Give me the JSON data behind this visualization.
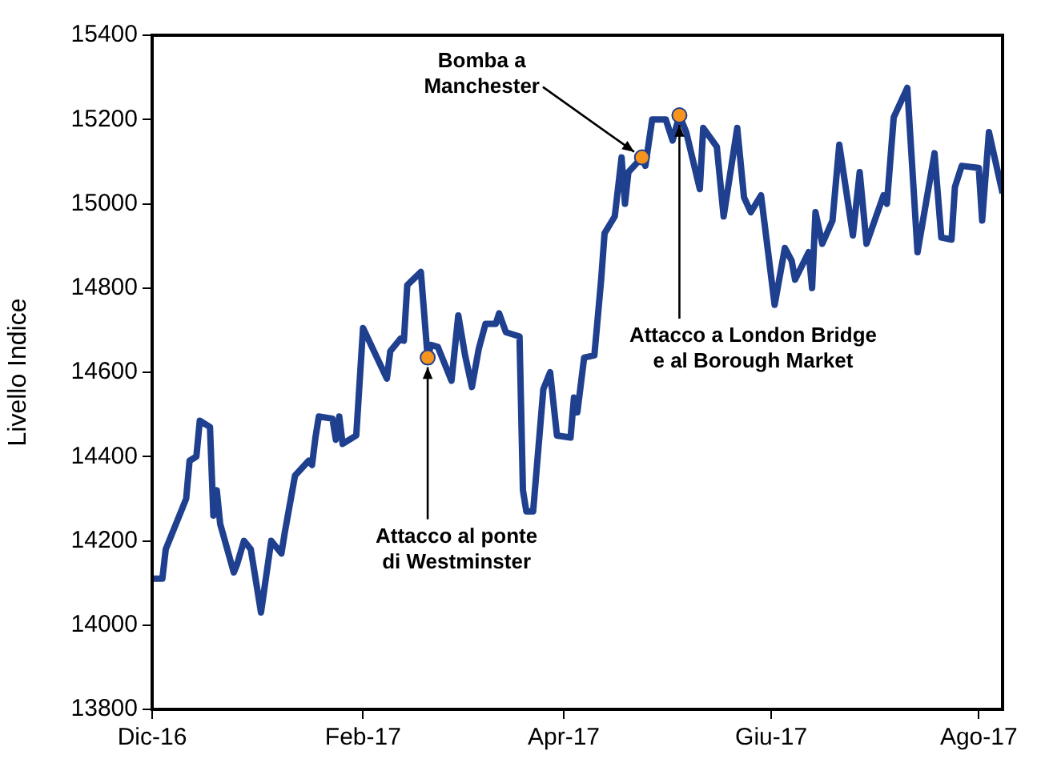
{
  "chart_data": {
    "type": "line",
    "ylabel": "Livello Indice",
    "x": [
      "2016-12-01",
      "2016-12-04",
      "2016-12-05",
      "2016-12-07",
      "2016-12-11",
      "2016-12-12",
      "2016-12-14",
      "2016-12-15",
      "2016-12-18",
      "2016-12-19",
      "2016-12-20",
      "2016-12-21",
      "2016-12-25",
      "2016-12-26",
      "2016-12-28",
      "2016-12-30",
      "2017-01-02",
      "2017-01-05",
      "2017-01-08",
      "2017-01-09",
      "2017-01-12",
      "2017-01-16",
      "2017-01-17",
      "2017-01-18",
      "2017-01-19",
      "2017-01-23",
      "2017-01-24",
      "2017-01-25",
      "2017-01-26",
      "2017-01-30",
      "2017-02-01",
      "2017-02-08",
      "2017-02-09",
      "2017-02-12",
      "2017-02-13",
      "2017-02-14",
      "2017-02-18",
      "2017-02-20",
      "2017-02-21",
      "2017-02-23",
      "2017-02-27",
      "2017-03-01",
      "2017-03-03",
      "2017-03-05",
      "2017-03-07",
      "2017-03-09",
      "2017-03-12",
      "2017-03-13",
      "2017-03-15",
      "2017-03-19",
      "2017-03-20",
      "2017-03-21",
      "2017-03-23",
      "2017-03-26",
      "2017-03-28",
      "2017-03-30",
      "2017-04-03",
      "2017-04-04",
      "2017-04-05",
      "2017-04-07",
      "2017-04-10",
      "2017-04-12",
      "2017-04-13",
      "2017-04-16",
      "2017-04-18",
      "2017-04-19",
      "2017-04-20",
      "2017-04-24",
      "2017-04-25",
      "2017-04-27",
      "2017-05-01",
      "2017-05-03",
      "2017-05-05",
      "2017-05-07",
      "2017-05-11",
      "2017-05-12",
      "2017-05-16",
      "2017-05-18",
      "2017-05-22",
      "2017-05-24",
      "2017-05-26",
      "2017-05-29",
      "2017-06-02",
      "2017-06-05",
      "2017-06-07",
      "2017-06-08",
      "2017-06-12",
      "2017-06-13",
      "2017-06-14",
      "2017-06-16",
      "2017-06-19",
      "2017-06-21",
      "2017-06-25",
      "2017-06-27",
      "2017-06-29",
      "2017-07-04",
      "2017-07-05",
      "2017-07-07",
      "2017-07-11",
      "2017-07-14",
      "2017-07-19",
      "2017-07-21",
      "2017-07-24",
      "2017-07-25",
      "2017-07-27",
      "2017-08-01",
      "2017-08-02",
      "2017-08-04",
      "2017-08-08"
    ],
    "series": [
      {
        "color": "#1f3f8f",
        "marker": "none",
        "values": [
          14110,
          14110,
          14180,
          14220,
          14300,
          14390,
          14400,
          14485,
          14470,
          14260,
          14320,
          14240,
          14125,
          14145,
          14200,
          14180,
          14030,
          14200,
          14170,
          14220,
          14355,
          14390,
          14380,
          14445,
          14495,
          14490,
          14440,
          14495,
          14430,
          14450,
          14705,
          14585,
          14650,
          14680,
          14675,
          14807,
          14838,
          14635,
          14665,
          14660,
          14580,
          14735,
          14640,
          14565,
          14655,
          14715,
          14715,
          14740,
          14695,
          14685,
          14320,
          14270,
          14270,
          14560,
          14600,
          14450,
          14445,
          14540,
          14505,
          14635,
          14640,
          14820,
          14930,
          14970,
          15110,
          15000,
          15075,
          15110,
          15090,
          15200,
          15200,
          15150,
          15210,
          15170,
          15035,
          15180,
          15135,
          14970,
          15180,
          15015,
          14980,
          15020,
          14760,
          14895,
          14865,
          14820,
          14885,
          14800,
          14980,
          14905,
          14960,
          15140,
          14925,
          15075,
          14905,
          15020,
          15000,
          15205,
          15275,
          14885,
          15120,
          14920,
          14915,
          15040,
          15090,
          15085,
          14960,
          15170,
          15025
        ]
      },
      {
        "type": "scatter",
        "marker": "circle",
        "color": "#f7941d",
        "x": [
          "2017-02-20",
          "2017-04-24",
          "2017-05-05"
        ],
        "values": [
          14635,
          15110,
          15210
        ]
      }
    ],
    "annotations": [
      {
        "text": "Attacco al ponte\ndi Westminster",
        "x": "2017-02-20",
        "y": 14635
      },
      {
        "text": "Bomba a\nManchester",
        "x": "2017-04-24",
        "y": 15110
      },
      {
        "text": "Attacco a London Bridge\ne al Borough Market",
        "x": "2017-05-05",
        "y": 15210
      }
    ],
    "xlim": [
      "2016-12-01",
      "2017-08-08"
    ],
    "xticks": [
      {
        "value": "2016-12-01",
        "label": "Dic-16"
      },
      {
        "value": "2017-02-01",
        "label": "Feb-17"
      },
      {
        "value": "2017-04-01",
        "label": "Apr-17"
      },
      {
        "value": "2017-06-01",
        "label": "Giu-17"
      },
      {
        "value": "2017-08-01",
        "label": "Ago-17"
      }
    ],
    "ylim": [
      13800,
      15400
    ],
    "yticks": [
      13800,
      14000,
      14200,
      14400,
      14600,
      14800,
      15000,
      15200,
      15400
    ],
    "grid": false,
    "legend": false,
    "line_style": "solid"
  }
}
